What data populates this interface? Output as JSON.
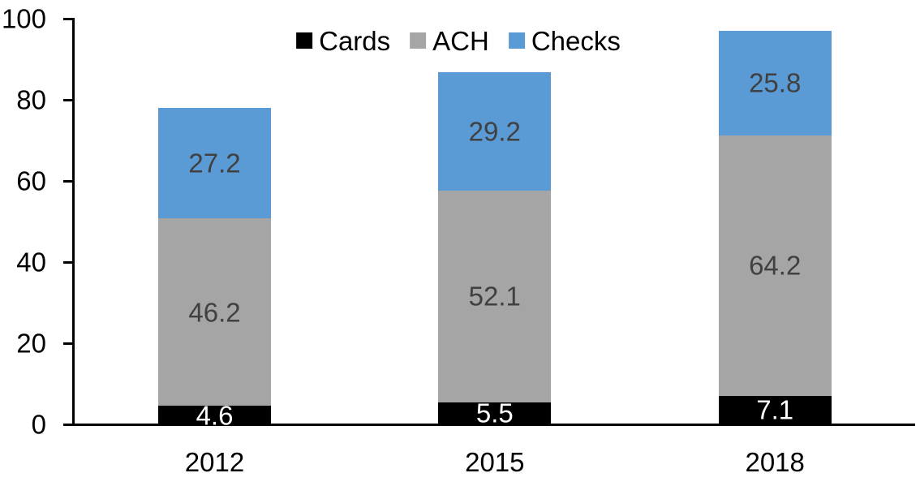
{
  "chart_data": {
    "type": "bar",
    "stacked": true,
    "title": "",
    "xlabel": "",
    "ylabel": "",
    "categories": [
      "2012",
      "2015",
      "2018"
    ],
    "series": [
      {
        "name": "Cards",
        "values": [
          4.6,
          5.5,
          7.1
        ],
        "color": "#000000",
        "label_color": "#ffffff"
      },
      {
        "name": "ACH",
        "values": [
          46.2,
          52.1,
          64.2
        ],
        "color": "#a5a5a5",
        "label_color": "#404040"
      },
      {
        "name": "Checks",
        "values": [
          27.2,
          29.2,
          25.8
        ],
        "color": "#5b9bd5",
        "label_color": "#404040"
      }
    ],
    "ylim": [
      0,
      100
    ],
    "yticks": [
      0,
      20,
      40,
      60,
      80,
      100
    ],
    "grid": false,
    "legend_position": "top-center",
    "legend_labels": [
      "Cards",
      "ACH",
      "Checks"
    ],
    "axis_color": "#000000",
    "background": "#ffffff",
    "data_labels_shown": true
  }
}
